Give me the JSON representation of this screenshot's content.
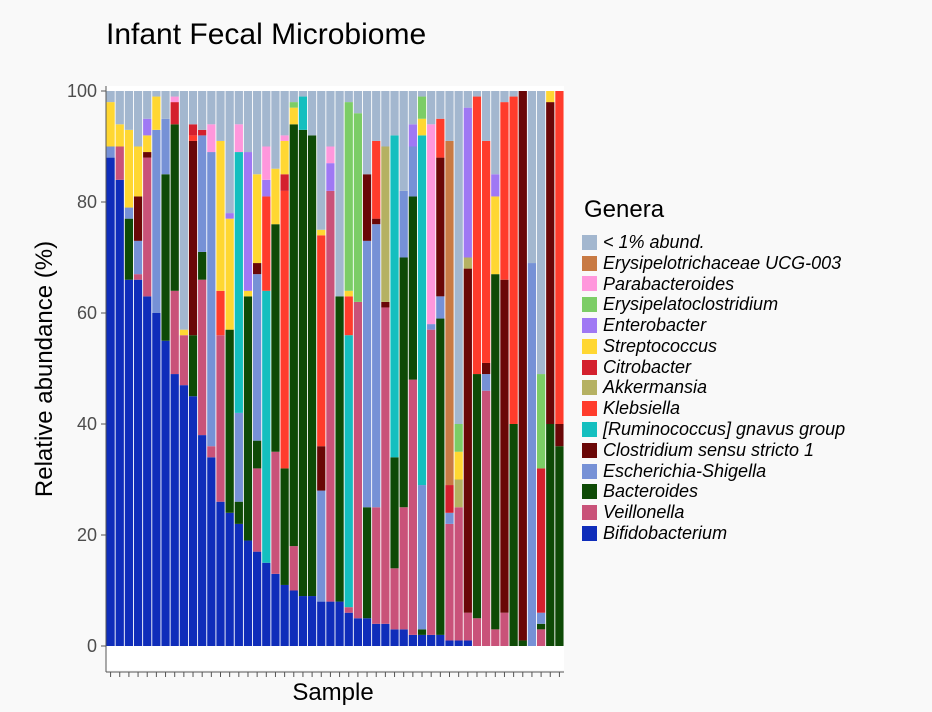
{
  "chart_data": {
    "type": "bar",
    "stacked": true,
    "title": "Infant Fecal Microbiome",
    "xlabel": "Sample",
    "ylabel": "Relative abundance (%)",
    "ylim": [
      0,
      100
    ],
    "yticks": [
      "0",
      "20",
      "40",
      "60",
      "80",
      "100"
    ],
    "x_tick_labels_shown": false,
    "grid": false,
    "legend": {
      "title": "Genera",
      "position": "right"
    },
    "series_colors": {
      "< 1% abund.": "#a3b7cf",
      "Erysipelotrichaceae UCG-003": "#c87a44",
      "Parabacteroides": "#ff97dc",
      "Erysipelatoclostridium": "#7ccd66",
      "Enterobacter": "#9f78f4",
      "Streptococcus": "#ffd732",
      "Citrobacter": "#d4202e",
      "Akkermansia": "#b5b162",
      "Klebsiella": "#ff3c2c",
      "[Ruminococcus] gnavus group": "#14bfbf",
      "Clostridium sensu stricto 1": "#6a0707",
      "Escherichia-Shigella": "#7691d6",
      "Bacteroides": "#0e4a06",
      "Veillonella": "#c95279",
      "Bifidobacterium": "#0f2dba"
    },
    "stack_order": [
      "Bifidobacterium",
      "Veillonella",
      "Bacteroides",
      "Escherichia-Shigella",
      "Clostridium sensu stricto 1",
      "[Ruminococcus] gnavus group",
      "Klebsiella",
      "Akkermansia",
      "Citrobacter",
      "Streptococcus",
      "Enterobacter",
      "Erysipelatoclostridium",
      "Parabacteroides",
      "Erysipelotrichaceae UCG-003",
      "< 1% abund."
    ],
    "samples": [
      [
        [
          "Bifidobacterium",
          88
        ],
        [
          "Escherichia-Shigella",
          2
        ],
        [
          "Streptococcus",
          8
        ],
        [
          "< 1% abund.",
          2
        ]
      ],
      [
        [
          "Bifidobacterium",
          84
        ],
        [
          "Veillonella",
          6
        ],
        [
          "Streptococcus",
          4
        ],
        [
          "< 1% abund.",
          6
        ]
      ],
      [
        [
          "Bifidobacterium",
          66
        ],
        [
          "Bacteroides",
          11
        ],
        [
          "Escherichia-Shigella",
          2
        ],
        [
          "Streptococcus",
          14
        ],
        [
          "< 1% abund.",
          7
        ]
      ],
      [
        [
          "Bifidobacterium",
          66
        ],
        [
          "Veillonella",
          1
        ],
        [
          "Escherichia-Shigella",
          6
        ],
        [
          "Clostridium sensu stricto 1",
          8
        ],
        [
          "Streptococcus",
          9
        ],
        [
          "< 1% abund.",
          10
        ]
      ],
      [
        [
          "Bifidobacterium",
          63
        ],
        [
          "Veillonella",
          25
        ],
        [
          "Clostridium sensu stricto 1",
          1
        ],
        [
          "Streptococcus",
          3
        ],
        [
          "Enterobacter",
          3
        ],
        [
          "< 1% abund.",
          5
        ]
      ],
      [
        [
          "Bifidobacterium",
          60
        ],
        [
          "Escherichia-Shigella",
          33
        ],
        [
          "Streptococcus",
          6
        ],
        [
          "< 1% abund.",
          1
        ]
      ],
      [
        [
          "Bifidobacterium",
          55
        ],
        [
          "Bacteroides",
          30
        ],
        [
          "Escherichia-Shigella",
          10
        ],
        [
          "< 1% abund.",
          5
        ]
      ],
      [
        [
          "Bifidobacterium",
          49
        ],
        [
          "Bacteroides",
          30
        ],
        [
          "Veillonella",
          15
        ],
        [
          "Citrobacter",
          4
        ],
        [
          "Parabacteroides",
          1
        ],
        [
          "< 1% abund.",
          1
        ]
      ],
      [
        [
          "Bifidobacterium",
          47
        ],
        [
          "Veillonella",
          9
        ],
        [
          "Streptococcus",
          1
        ],
        [
          "< 1% abund.",
          43
        ]
      ],
      [
        [
          "Bifidobacterium",
          45
        ],
        [
          "Bacteroides",
          11
        ],
        [
          "Citrobacter",
          2
        ],
        [
          "Clostridium sensu stricto 1",
          35
        ],
        [
          "Klebsiella",
          1
        ],
        [
          "< 1% abund.",
          6
        ]
      ],
      [
        [
          "Bifidobacterium",
          38
        ],
        [
          "Veillonella",
          28
        ],
        [
          "Bacteroides",
          5
        ],
        [
          "Escherichia-Shigella",
          21
        ],
        [
          "Citrobacter",
          1
        ],
        [
          "< 1% abund.",
          7
        ]
      ],
      [
        [
          "Bifidobacterium",
          34
        ],
        [
          "Veillonella",
          2
        ],
        [
          "Escherichia-Shigella",
          53
        ],
        [
          "Parabacteroides",
          5
        ],
        [
          "< 1% abund.",
          6
        ]
      ],
      [
        [
          "Bifidobacterium",
          26
        ],
        [
          "Veillonella",
          30
        ],
        [
          "Klebsiella",
          8
        ],
        [
          "Streptococcus",
          27
        ],
        [
          "< 1% abund.",
          9
        ]
      ],
      [
        [
          "Bifidobacterium",
          24
        ],
        [
          "Bacteroides",
          33
        ],
        [
          "Streptococcus",
          20
        ],
        [
          "Enterobacter",
          1
        ],
        [
          "< 1% abund.",
          22
        ]
      ],
      [
        [
          "Bifidobacterium",
          22
        ],
        [
          "Bacteroides",
          4
        ],
        [
          "Escherichia-Shigella",
          16
        ],
        [
          "[Ruminococcus] gnavus group",
          47
        ],
        [
          "Parabacteroides",
          5
        ],
        [
          "< 1% abund.",
          6
        ]
      ],
      [
        [
          "Bifidobacterium",
          19
        ],
        [
          "Bacteroides",
          44
        ],
        [
          "Streptococcus",
          1
        ],
        [
          "Enterobacter",
          25
        ],
        [
          "< 1% abund.",
          11
        ]
      ],
      [
        [
          "Bifidobacterium",
          17
        ],
        [
          "Veillonella",
          15
        ],
        [
          "Bacteroides",
          5
        ],
        [
          "Escherichia-Shigella",
          30
        ],
        [
          "Clostridium sensu stricto 1",
          2
        ],
        [
          "Streptococcus",
          16
        ],
        [
          "< 1% abund.",
          15
        ]
      ],
      [
        [
          "Bifidobacterium",
          15
        ],
        [
          "[Ruminococcus] gnavus group",
          49
        ],
        [
          "Klebsiella",
          17
        ],
        [
          "Enterobacter",
          3
        ],
        [
          "Parabacteroides",
          6
        ],
        [
          "< 1% abund.",
          10
        ]
      ],
      [
        [
          "Bifidobacterium",
          13
        ],
        [
          "Veillonella",
          22
        ],
        [
          "Bacteroides",
          41
        ],
        [
          "Streptococcus",
          10
        ],
        [
          "< 1% abund.",
          14
        ]
      ],
      [
        [
          "Bifidobacterium",
          11
        ],
        [
          "Bacteroides",
          21
        ],
        [
          "Citrobacter",
          3
        ],
        [
          "Klebsiella",
          50
        ],
        [
          "Streptococcus",
          6
        ],
        [
          "Parabacteroides",
          1
        ],
        [
          "< 1% abund.",
          8
        ]
      ],
      [
        [
          "Bifidobacterium",
          10
        ],
        [
          "Veillonella",
          8
        ],
        [
          "Bacteroides",
          76
        ],
        [
          "Streptococcus",
          3
        ],
        [
          "Erysipelatoclostridium",
          1
        ],
        [
          "< 1% abund.",
          2
        ]
      ],
      [
        [
          "Bifidobacterium",
          9
        ],
        [
          "Bacteroides",
          84
        ],
        [
          "[Ruminococcus] gnavus group",
          6
        ],
        [
          "< 1% abund.",
          1
        ]
      ],
      [
        [
          "Bifidobacterium",
          9
        ],
        [
          "Bacteroides",
          83
        ],
        [
          "< 1% abund.",
          8
        ]
      ],
      [
        [
          "Bifidobacterium",
          8
        ],
        [
          "Clostridium sensu stricto 1",
          8
        ],
        [
          "Klebsiella",
          38
        ],
        [
          "Streptococcus",
          1
        ],
        [
          "Escherichia-Shigella",
          20
        ],
        [
          "< 1% abund.",
          25
        ]
      ],
      [
        [
          "Bifidobacterium",
          8
        ],
        [
          "Veillonella",
          74
        ],
        [
          "Enterobacter",
          5
        ],
        [
          "Parabacteroides",
          3
        ],
        [
          "< 1% abund.",
          10
        ]
      ],
      [
        [
          "Bifidobacterium",
          8
        ],
        [
          "Bacteroides",
          55
        ],
        [
          "< 1% abund.",
          37
        ]
      ],
      [
        [
          "Bifidobacterium",
          6
        ],
        [
          "Veillonella",
          1
        ],
        [
          "[Ruminococcus] gnavus group",
          49
        ],
        [
          "Klebsiella",
          7
        ],
        [
          "Streptococcus",
          1
        ],
        [
          "Erysipelatoclostridium",
          34
        ],
        [
          "< 1% abund.",
          2
        ]
      ],
      [
        [
          "Bifidobacterium",
          5
        ],
        [
          "Veillonella",
          57
        ],
        [
          "Erysipelatoclostridium",
          34
        ],
        [
          "< 1% abund.",
          4
        ]
      ],
      [
        [
          "Bifidobacterium",
          5
        ],
        [
          "Bacteroides",
          20
        ],
        [
          "Clostridium sensu stricto 1",
          12
        ],
        [
          "Escherichia-Shigella",
          48
        ],
        [
          "< 1% abund.",
          15
        ]
      ],
      [
        [
          "Bifidobacterium",
          4
        ],
        [
          "Veillonella",
          21
        ],
        [
          "Clostridium sensu stricto 1",
          1
        ],
        [
          "Escherichia-Shigella",
          51
        ],
        [
          "Klebsiella",
          14
        ],
        [
          "< 1% abund.",
          9
        ]
      ],
      [
        [
          "Bifidobacterium",
          4
        ],
        [
          "Veillonella",
          57
        ],
        [
          "Clostridium sensu stricto 1",
          1
        ],
        [
          "Akkermansia",
          28
        ],
        [
          "< 1% abund.",
          10
        ]
      ],
      [
        [
          "Bifidobacterium",
          3
        ],
        [
          "Veillonella",
          11
        ],
        [
          "Bacteroides",
          20
        ],
        [
          "[Ruminococcus] gnavus group",
          58
        ],
        [
          "< 1% abund.",
          8
        ]
      ],
      [
        [
          "Bifidobacterium",
          3
        ],
        [
          "Veillonella",
          22
        ],
        [
          "Bacteroides",
          45
        ],
        [
          "Escherichia-Shigella",
          12
        ],
        [
          "< 1% abund.",
          18
        ]
      ],
      [
        [
          "Bifidobacterium",
          2
        ],
        [
          "Veillonella",
          46
        ],
        [
          "Bacteroides",
          33
        ],
        [
          "Escherichia-Shigella",
          9
        ],
        [
          "Enterobacter",
          4
        ],
        [
          "< 1% abund.",
          6
        ]
      ],
      [
        [
          "Bifidobacterium",
          2
        ],
        [
          "Bacteroides",
          1
        ],
        [
          "Escherichia-Shigella",
          26
        ],
        [
          "[Ruminococcus] gnavus group",
          63
        ],
        [
          "Streptococcus",
          3
        ],
        [
          "Erysipelatoclostridium",
          4
        ],
        [
          "< 1% abund.",
          1
        ]
      ],
      [
        [
          "Bifidobacterium",
          2
        ],
        [
          "Veillonella",
          55
        ],
        [
          "Escherichia-Shigella",
          1
        ],
        [
          "Parabacteroides",
          36
        ],
        [
          "< 1% abund.",
          6
        ]
      ],
      [
        [
          "Bifidobacterium",
          2
        ],
        [
          "Bacteroides",
          57
        ],
        [
          "Escherichia-Shigella",
          4
        ],
        [
          "Clostridium sensu stricto 1",
          25
        ],
        [
          "Klebsiella",
          7
        ],
        [
          "< 1% abund.",
          5
        ]
      ],
      [
        [
          "Bifidobacterium",
          1
        ],
        [
          "Veillonella",
          21
        ],
        [
          "Escherichia-Shigella",
          2
        ],
        [
          "Citrobacter",
          5
        ],
        [
          "Erysipelotrichaceae UCG-003",
          62
        ],
        [
          "< 1% abund.",
          9
        ]
      ],
      [
        [
          "Bifidobacterium",
          1
        ],
        [
          "Veillonella",
          24
        ],
        [
          "Streptococcus",
          5
        ],
        [
          "Akkermansia",
          5
        ],
        [
          "Erysipelatoclostridium",
          5
        ],
        [
          "< 1% abund.",
          60
        ]
      ],
      [
        [
          "Bifidobacterium",
          1
        ],
        [
          "Veillonella",
          5
        ],
        [
          "Clostridium sensu stricto 1",
          62
        ],
        [
          "Akkermansia",
          2
        ],
        [
          "Enterobacter",
          27
        ],
        [
          "< 1% abund.",
          3
        ]
      ],
      [
        [
          "Veillonella",
          5
        ],
        [
          "Bacteroides",
          44
        ],
        [
          "Klebsiella",
          50
        ],
        [
          "< 1% abund.",
          1
        ]
      ],
      [
        [
          "Veillonella",
          46
        ],
        [
          "Escherichia-Shigella",
          3
        ],
        [
          "Clostridium sensu stricto 1",
          2
        ],
        [
          "Klebsiella",
          40
        ],
        [
          "< 1% abund.",
          9
        ]
      ],
      [
        [
          "Veillonella",
          3
        ],
        [
          "Bacteroides",
          64
        ],
        [
          "Streptococcus",
          14
        ],
        [
          "Enterobacter",
          4
        ],
        [
          "< 1% abund.",
          15
        ]
      ],
      [
        [
          "Veillonella",
          6
        ],
        [
          "Clostridium sensu stricto 1",
          60
        ],
        [
          "Klebsiella",
          32
        ],
        [
          "< 1% abund.",
          2
        ]
      ],
      [
        [
          "Bacteroides",
          40
        ],
        [
          "Klebsiella",
          59
        ],
        [
          "< 1% abund.",
          1
        ]
      ],
      [
        [
          "Bacteroides",
          1
        ],
        [
          "Clostridium sensu stricto 1",
          99
        ]
      ],
      [
        [
          "Escherichia-Shigella",
          69
        ],
        [
          "< 1% abund.",
          31
        ]
      ],
      [
        [
          "Veillonella",
          3
        ],
        [
          "Bacteroides",
          1
        ],
        [
          "Citrobacter",
          26
        ],
        [
          "Escherichia-Shigella",
          2
        ],
        [
          "Erysipelatoclostridium",
          17
        ],
        [
          "< 1% abund.",
          51
        ]
      ],
      [
        [
          "Bacteroides",
          40
        ],
        [
          "Clostridium sensu stricto 1",
          58
        ],
        [
          "Streptococcus",
          2
        ]
      ],
      [
        [
          "Bacteroides",
          36
        ],
        [
          "Clostridium sensu stricto 1",
          4
        ],
        [
          "Klebsiella",
          60
        ]
      ]
    ]
  }
}
